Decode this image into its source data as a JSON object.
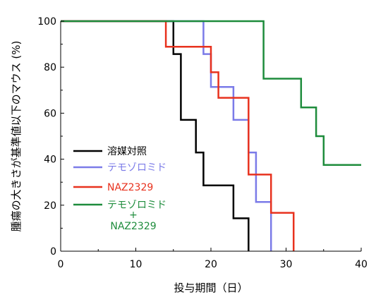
{
  "chart_data": {
    "type": "line",
    "step": true,
    "xlabel": "投与期間（日）",
    "ylabel": "腫瘍の大きさが基準値以下のマウス (%)",
    "xlim": [
      0,
      40
    ],
    "ylim": [
      0,
      100
    ],
    "xticks": [
      "0",
      "10",
      "20",
      "30",
      "40"
    ],
    "yticks": [
      "0",
      "20",
      "40",
      "60",
      "80",
      "100"
    ],
    "grid": false,
    "legend_position": "center-left",
    "series": [
      {
        "name": "溶媒対照",
        "color": "#000000",
        "x": [
          0,
          15,
          15,
          16,
          16,
          18,
          18,
          19,
          19,
          23,
          23,
          25,
          25
        ],
        "y": [
          100,
          100,
          85.7,
          85.7,
          57.1,
          57.1,
          42.9,
          42.9,
          28.6,
          28.6,
          14.3,
          14.3,
          0
        ]
      },
      {
        "name": "テモゾロミド",
        "color": "#7b7be8",
        "x": [
          0,
          19,
          19,
          20,
          20,
          23,
          23,
          25,
          25,
          26,
          26,
          28,
          28
        ],
        "y": [
          100,
          100,
          85.7,
          85.7,
          71.4,
          71.4,
          57.1,
          57.1,
          42.9,
          42.9,
          21.4,
          21.4,
          0
        ]
      },
      {
        "name": "NAZ2329",
        "color": "#e8321e",
        "x": [
          0,
          14,
          14,
          20,
          20,
          21,
          21,
          25,
          25,
          28,
          28,
          31,
          31
        ],
        "y": [
          100,
          100,
          88.9,
          88.9,
          77.8,
          77.8,
          66.7,
          66.7,
          33.3,
          33.3,
          16.7,
          16.7,
          0
        ]
      },
      {
        "name": "テモゾロミド\n+\nNAZ2329",
        "name_lines": [
          "テモゾロミド",
          "+",
          "NAZ2329"
        ],
        "color": "#1e8c3c",
        "x": [
          0,
          27,
          27,
          32,
          32,
          34,
          34,
          35,
          35,
          40
        ],
        "y": [
          100,
          100,
          75,
          75,
          62.5,
          62.5,
          50,
          50,
          37.5,
          37.5
        ]
      }
    ]
  }
}
